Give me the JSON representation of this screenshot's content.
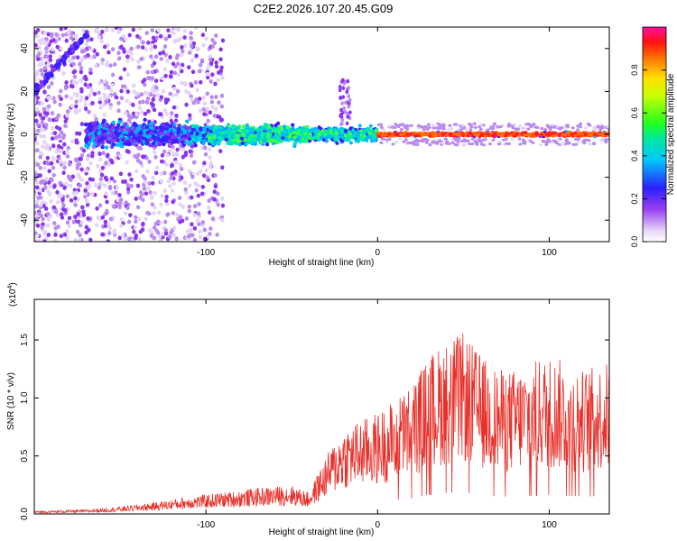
{
  "title": "C2E2.2026.107.20.45.G09",
  "chart_data": [
    {
      "type": "heatmap",
      "xlabel": "Height of straight line (km)",
      "ylabel": "Frequency (Hz)",
      "xlim": [
        -200,
        135
      ],
      "ylim": [
        -50,
        50
      ],
      "xticks": [
        -100,
        0,
        100
      ],
      "yticks": [
        -40,
        -20,
        0,
        20,
        40
      ],
      "colorbar": {
        "label": "Normalized spectral amplitude",
        "range": [
          0,
          1
        ],
        "ticks": [
          "0.0",
          "0.2",
          "0.4",
          "0.6",
          "0.8"
        ],
        "tick_values": [
          0.0,
          0.2,
          0.4,
          0.6,
          0.8
        ]
      }
    },
    {
      "type": "line",
      "xlabel": "Height of straight line (km)",
      "ylabel": "SNR (10 * v/v)",
      "scale_label": "(x10",
      "scale_exp": "4",
      "scale_close": ")",
      "xlim": [
        -200,
        135
      ],
      "ylim": [
        0,
        1.85
      ],
      "xticks": [
        -100,
        0,
        100
      ],
      "yticks": [
        "0.0",
        "0.5",
        "1.0",
        "1.5"
      ],
      "ytick_values": [
        0.0,
        0.5,
        1.0,
        1.5
      ],
      "color": "#e8302a",
      "envelope": {
        "x": [
          -200,
          -170,
          -150,
          -130,
          -110,
          -90,
          -70,
          -50,
          -40,
          -30,
          -20,
          -10,
          0,
          10,
          20,
          30,
          40,
          50,
          60,
          70,
          80,
          90,
          100,
          110,
          120,
          135
        ],
        "y": [
          0.02,
          0.03,
          0.05,
          0.08,
          0.12,
          0.15,
          0.18,
          0.2,
          0.15,
          0.4,
          0.6,
          0.65,
          0.7,
          0.8,
          0.9,
          1.1,
          1.2,
          1.25,
          1.1,
          1.0,
          1.0,
          1.05,
          1.1,
          1.05,
          1.0,
          1.05
        ]
      }
    }
  ]
}
